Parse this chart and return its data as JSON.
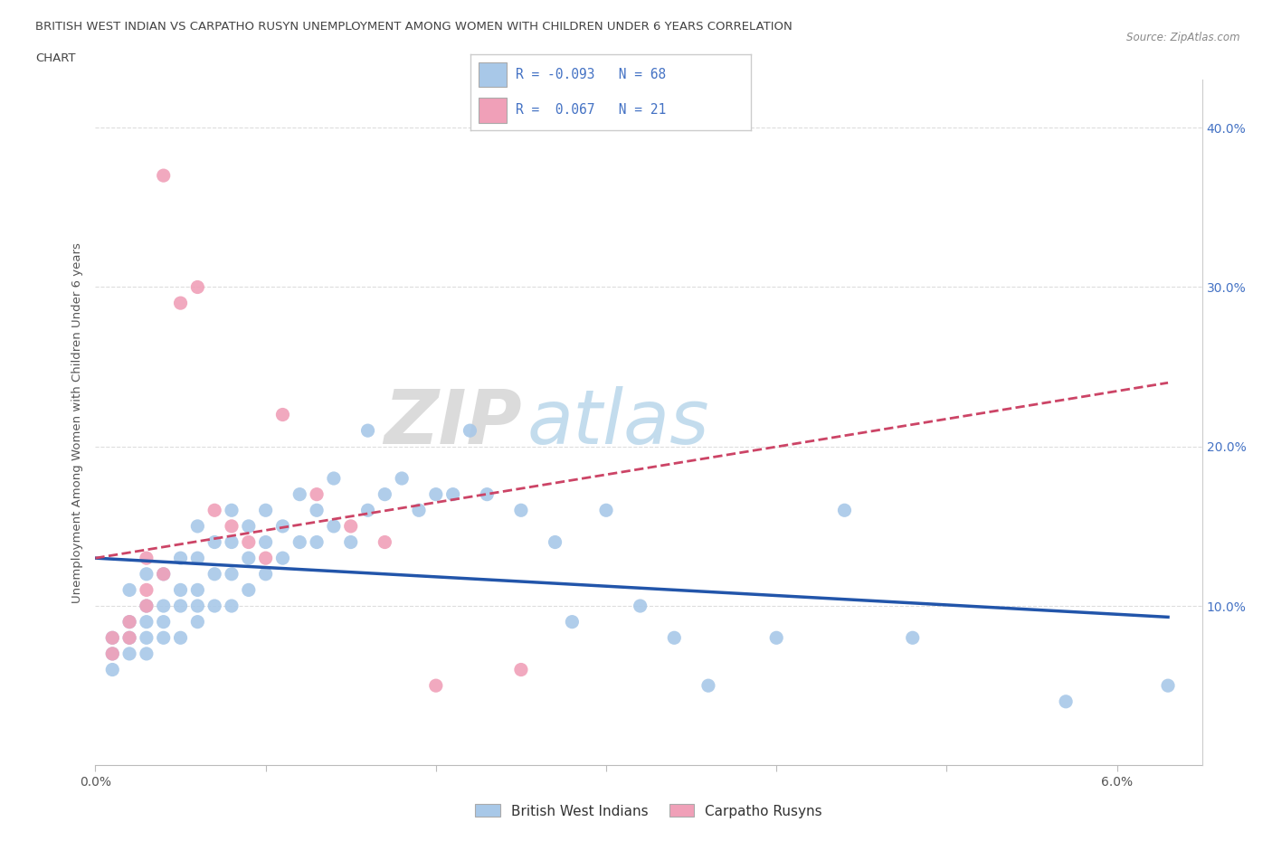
{
  "title_line1": "BRITISH WEST INDIAN VS CARPATHO RUSYN UNEMPLOYMENT AMONG WOMEN WITH CHILDREN UNDER 6 YEARS CORRELATION",
  "title_line2": "CHART",
  "source": "Source: ZipAtlas.com",
  "ylabel": "Unemployment Among Women with Children Under 6 years",
  "xlim": [
    0.0,
    0.065
  ],
  "ylim": [
    0.0,
    0.43
  ],
  "x_ticks": [
    0.0,
    0.01,
    0.02,
    0.03,
    0.04,
    0.05,
    0.06
  ],
  "x_tick_labels": [
    "0.0%",
    "",
    "",
    "",
    "",
    "",
    "6.0%"
  ],
  "y_ticks": [
    0.0,
    0.1,
    0.2,
    0.3,
    0.4
  ],
  "y_tick_labels": [
    "",
    "10.0%",
    "20.0%",
    "30.0%",
    "40.0%"
  ],
  "blue_color": "#a8c8e8",
  "pink_color": "#f0a0b8",
  "blue_line_color": "#2255aa",
  "pink_line_color": "#cc4466",
  "grid_color": "#dddddd",
  "blue_scatter_x": [
    0.001,
    0.001,
    0.001,
    0.002,
    0.002,
    0.002,
    0.002,
    0.003,
    0.003,
    0.003,
    0.003,
    0.003,
    0.004,
    0.004,
    0.004,
    0.004,
    0.005,
    0.005,
    0.005,
    0.005,
    0.006,
    0.006,
    0.006,
    0.006,
    0.006,
    0.007,
    0.007,
    0.007,
    0.008,
    0.008,
    0.008,
    0.008,
    0.009,
    0.009,
    0.009,
    0.01,
    0.01,
    0.01,
    0.011,
    0.011,
    0.012,
    0.012,
    0.013,
    0.013,
    0.014,
    0.014,
    0.015,
    0.016,
    0.016,
    0.017,
    0.018,
    0.019,
    0.02,
    0.021,
    0.022,
    0.023,
    0.025,
    0.027,
    0.028,
    0.03,
    0.032,
    0.034,
    0.036,
    0.04,
    0.044,
    0.048,
    0.057,
    0.063
  ],
  "blue_scatter_y": [
    0.06,
    0.07,
    0.08,
    0.07,
    0.08,
    0.09,
    0.11,
    0.07,
    0.08,
    0.09,
    0.1,
    0.12,
    0.08,
    0.09,
    0.1,
    0.12,
    0.08,
    0.1,
    0.11,
    0.13,
    0.09,
    0.1,
    0.11,
    0.13,
    0.15,
    0.1,
    0.12,
    0.14,
    0.1,
    0.12,
    0.14,
    0.16,
    0.11,
    0.13,
    0.15,
    0.12,
    0.14,
    0.16,
    0.13,
    0.15,
    0.14,
    0.17,
    0.14,
    0.16,
    0.15,
    0.18,
    0.14,
    0.16,
    0.21,
    0.17,
    0.18,
    0.16,
    0.17,
    0.17,
    0.21,
    0.17,
    0.16,
    0.14,
    0.09,
    0.16,
    0.1,
    0.08,
    0.05,
    0.08,
    0.16,
    0.08,
    0.04,
    0.05
  ],
  "pink_scatter_x": [
    0.001,
    0.001,
    0.002,
    0.002,
    0.003,
    0.003,
    0.003,
    0.004,
    0.004,
    0.005,
    0.006,
    0.007,
    0.008,
    0.009,
    0.01,
    0.011,
    0.013,
    0.015,
    0.017,
    0.02,
    0.025
  ],
  "pink_scatter_y": [
    0.07,
    0.08,
    0.08,
    0.09,
    0.1,
    0.11,
    0.13,
    0.12,
    0.37,
    0.29,
    0.3,
    0.16,
    0.15,
    0.14,
    0.13,
    0.22,
    0.17,
    0.15,
    0.14,
    0.05,
    0.06
  ],
  "blue_trend_x": [
    0.0,
    0.063
  ],
  "blue_trend_y": [
    0.13,
    0.093
  ],
  "pink_trend_x": [
    0.0,
    0.063
  ],
  "pink_trend_y": [
    0.13,
    0.24
  ]
}
